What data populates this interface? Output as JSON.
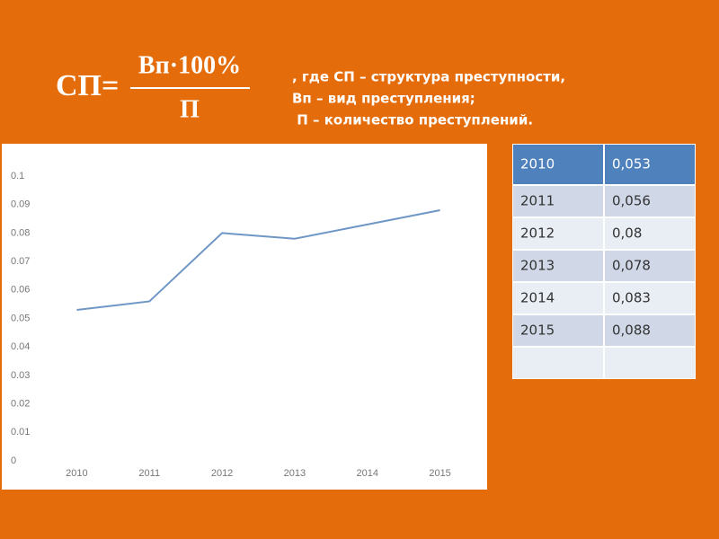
{
  "formula": {
    "left": "СП=",
    "numerator": "Вп·100%",
    "denominator": "П"
  },
  "legend_text": [
    ", где СП – структура преступности,",
    "Вп – вид преступления;",
    " П – количество преступлений."
  ],
  "table": {
    "header": [
      "2010",
      "0,053"
    ],
    "rows": [
      [
        "2011",
        "0,056"
      ],
      [
        "2012",
        "0,08"
      ],
      [
        "2013",
        "0,078"
      ],
      [
        "2014",
        "0,083"
      ],
      [
        "2015",
        "0,088"
      ]
    ]
  },
  "chart_data": {
    "type": "line",
    "categories": [
      "2010",
      "2011",
      "2012",
      "2013",
      "2014",
      "2015"
    ],
    "series": [
      {
        "color": "#6f97c6",
        "values": [
          0.053,
          0.056,
          0.08,
          0.078,
          0.083,
          0.088
        ]
      }
    ],
    "ylim": [
      0,
      0.1
    ],
    "yticks": [
      0,
      0.01,
      0.02,
      0.03,
      0.04,
      0.05,
      0.06,
      0.07,
      0.08,
      0.09,
      0.1
    ],
    "grid": false
  }
}
